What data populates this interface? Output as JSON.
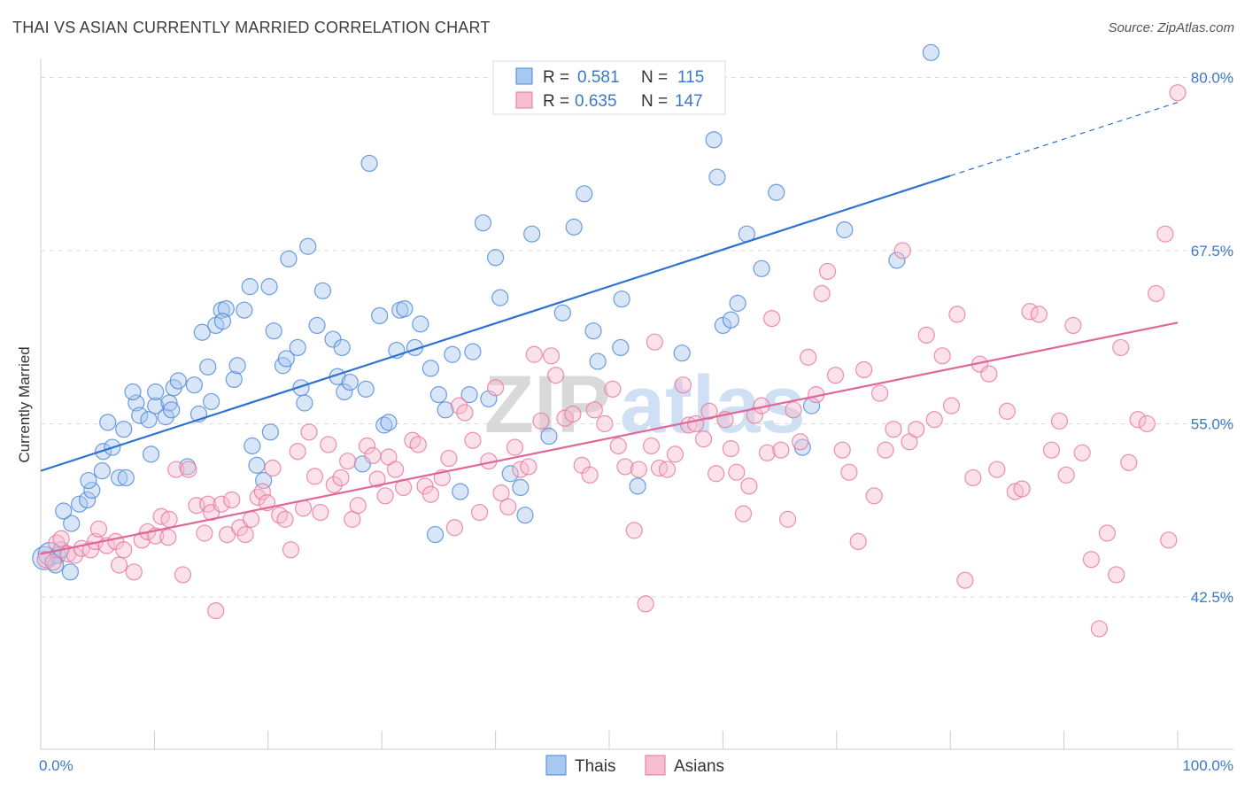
{
  "title": "THAI VS ASIAN CURRENTLY MARRIED CORRELATION CHART",
  "source": "Source: ZipAtlas.com",
  "watermark": {
    "zip": "ZIP",
    "atlas": "atlas"
  },
  "colors": {
    "thais": "#4a86d8",
    "thais_fill": "#a8c8f0",
    "asians": "#e8749b",
    "asians_fill": "#f6bcd0",
    "tick_text": "#3b78c9"
  },
  "legend_top": [
    {
      "r_label": "R = ",
      "r_value": "0.581",
      "n_label": "N = ",
      "n_value": "115"
    },
    {
      "r_label": "R = ",
      "r_value": "0.635",
      "n_label": "N = ",
      "n_value": "147"
    }
  ],
  "chart_data": {
    "type": "scatter",
    "title": "THAI VS ASIAN CURRENTLY MARRIED CORRELATION CHART",
    "xlabel": "",
    "ylabel": "Currently Married",
    "xlim": [
      0,
      100
    ],
    "ylim": [
      31.5,
      81.5
    ],
    "x_tick_labels": [
      "0.0%",
      "100.0%"
    ],
    "y_ticks": [
      42.5,
      55.0,
      67.5,
      80.0
    ],
    "y_tick_labels": [
      "42.5%",
      "55.0%",
      "67.5%",
      "80.0%"
    ],
    "grid": true,
    "legend_position": "bottom-center",
    "series": [
      {
        "name": "Thais",
        "r": 0.581,
        "n": 115,
        "trend": {
          "x1": 0,
          "y1": 51.6,
          "x2": 80,
          "y2": 72.9,
          "dashed_to_x": 100,
          "dashed_to_y": 78.2
        },
        "points": [
          [
            0.3,
            45.3
          ],
          [
            0.8,
            45.6
          ],
          [
            1.5,
            45.5
          ],
          [
            1.3,
            44.8
          ],
          [
            2.6,
            44.3
          ],
          [
            1.8,
            45.9
          ],
          [
            2.7,
            47.8
          ],
          [
            3.4,
            49.2
          ],
          [
            2.0,
            48.7
          ],
          [
            4.1,
            49.5
          ],
          [
            4.5,
            50.2
          ],
          [
            4.2,
            50.9
          ],
          [
            5.4,
            51.6
          ],
          [
            5.5,
            53.0
          ],
          [
            6.3,
            53.3
          ],
          [
            5.9,
            55.1
          ],
          [
            6.9,
            51.1
          ],
          [
            7.5,
            51.1
          ],
          [
            7.3,
            54.6
          ],
          [
            8.4,
            56.5
          ],
          [
            8.1,
            57.3
          ],
          [
            8.7,
            55.6
          ],
          [
            9.7,
            52.8
          ],
          [
            9.5,
            55.3
          ],
          [
            10.1,
            56.3
          ],
          [
            10.1,
            57.3
          ],
          [
            11.0,
            55.5
          ],
          [
            11.3,
            56.5
          ],
          [
            11.7,
            57.6
          ],
          [
            12.1,
            58.1
          ],
          [
            11.5,
            56.0
          ],
          [
            12.9,
            51.9
          ],
          [
            13.5,
            57.8
          ],
          [
            13.9,
            55.7
          ],
          [
            14.2,
            61.6
          ],
          [
            14.7,
            59.1
          ],
          [
            15.0,
            56.6
          ],
          [
            15.4,
            62.1
          ],
          [
            15.9,
            63.2
          ],
          [
            16.3,
            63.3
          ],
          [
            16.0,
            62.4
          ],
          [
            17.0,
            58.2
          ],
          [
            17.3,
            59.2
          ],
          [
            17.9,
            63.2
          ],
          [
            18.4,
            64.9
          ],
          [
            18.6,
            53.4
          ],
          [
            19.0,
            52.0
          ],
          [
            19.6,
            50.9
          ],
          [
            20.5,
            61.7
          ],
          [
            20.2,
            54.4
          ],
          [
            20.1,
            64.9
          ],
          [
            21.3,
            59.2
          ],
          [
            21.8,
            66.9
          ],
          [
            21.6,
            59.7
          ],
          [
            22.6,
            60.5
          ],
          [
            22.9,
            57.6
          ],
          [
            23.2,
            56.5
          ],
          [
            23.5,
            67.8
          ],
          [
            24.3,
            62.1
          ],
          [
            24.8,
            64.6
          ],
          [
            25.7,
            61.1
          ],
          [
            26.1,
            58.4
          ],
          [
            26.5,
            60.5
          ],
          [
            26.7,
            57.3
          ],
          [
            27.2,
            58.0
          ],
          [
            28.3,
            52.1
          ],
          [
            28.6,
            57.5
          ],
          [
            28.9,
            73.8
          ],
          [
            29.8,
            62.8
          ],
          [
            30.2,
            54.9
          ],
          [
            30.6,
            55.1
          ],
          [
            31.3,
            60.3
          ],
          [
            31.6,
            63.2
          ],
          [
            32.0,
            63.3
          ],
          [
            32.9,
            60.5
          ],
          [
            33.4,
            62.2
          ],
          [
            34.3,
            59.0
          ],
          [
            34.7,
            47.0
          ],
          [
            35.0,
            57.1
          ],
          [
            35.6,
            56.0
          ],
          [
            36.2,
            60.0
          ],
          [
            36.9,
            50.1
          ],
          [
            37.7,
            57.1
          ],
          [
            38.0,
            60.2
          ],
          [
            38.9,
            69.5
          ],
          [
            39.4,
            56.8
          ],
          [
            40.0,
            67.0
          ],
          [
            40.4,
            64.1
          ],
          [
            41.3,
            51.4
          ],
          [
            42.2,
            50.4
          ],
          [
            42.6,
            48.4
          ],
          [
            43.2,
            68.7
          ],
          [
            44.7,
            54.1
          ],
          [
            45.9,
            63.0
          ],
          [
            46.9,
            69.2
          ],
          [
            47.8,
            71.6
          ],
          [
            48.6,
            61.7
          ],
          [
            49.0,
            59.5
          ],
          [
            51.0,
            60.5
          ],
          [
            51.1,
            64.0
          ],
          [
            52.5,
            50.5
          ],
          [
            56.4,
            60.1
          ],
          [
            59.2,
            75.5
          ],
          [
            59.5,
            72.8
          ],
          [
            60.0,
            62.1
          ],
          [
            60.7,
            62.5
          ],
          [
            61.3,
            63.7
          ],
          [
            62.1,
            68.7
          ],
          [
            63.4,
            66.2
          ],
          [
            64.7,
            71.7
          ],
          [
            67.0,
            53.3
          ],
          [
            67.8,
            56.3
          ],
          [
            70.7,
            69.0
          ],
          [
            75.3,
            66.8
          ],
          [
            78.3,
            81.8
          ]
        ]
      },
      {
        "name": "Asians",
        "r": 0.635,
        "n": 147,
        "trend": {
          "x1": 0,
          "y1": 45.6,
          "x2": 100,
          "y2": 62.3
        },
        "points": [
          [
            0.4,
            45.2
          ],
          [
            1.1,
            45.0
          ],
          [
            1.4,
            46.4
          ],
          [
            1.8,
            46.7
          ],
          [
            2.4,
            45.6
          ],
          [
            3.0,
            45.5
          ],
          [
            3.6,
            46.0
          ],
          [
            4.4,
            45.9
          ],
          [
            4.8,
            46.5
          ],
          [
            5.1,
            47.4
          ],
          [
            5.8,
            46.2
          ],
          [
            6.6,
            46.5
          ],
          [
            6.9,
            44.8
          ],
          [
            7.3,
            45.9
          ],
          [
            8.2,
            44.3
          ],
          [
            8.9,
            46.6
          ],
          [
            9.4,
            47.2
          ],
          [
            10.1,
            46.9
          ],
          [
            10.6,
            48.3
          ],
          [
            11.2,
            46.8
          ],
          [
            11.3,
            48.1
          ],
          [
            11.9,
            51.7
          ],
          [
            12.5,
            44.1
          ],
          [
            13.0,
            51.7
          ],
          [
            13.7,
            49.1
          ],
          [
            14.4,
            47.1
          ],
          [
            14.7,
            49.2
          ],
          [
            15.0,
            48.6
          ],
          [
            15.4,
            41.5
          ],
          [
            15.9,
            49.2
          ],
          [
            16.4,
            47.0
          ],
          [
            16.8,
            49.5
          ],
          [
            17.5,
            47.5
          ],
          [
            18.0,
            47.0
          ],
          [
            18.5,
            48.1
          ],
          [
            19.1,
            49.7
          ],
          [
            19.5,
            50.1
          ],
          [
            19.9,
            49.3
          ],
          [
            20.4,
            51.8
          ],
          [
            21.0,
            48.4
          ],
          [
            21.5,
            48.1
          ],
          [
            22.0,
            45.9
          ],
          [
            22.6,
            53.0
          ],
          [
            23.1,
            48.9
          ],
          [
            23.6,
            54.4
          ],
          [
            24.1,
            51.2
          ],
          [
            24.6,
            48.6
          ],
          [
            25.3,
            53.5
          ],
          [
            25.8,
            50.6
          ],
          [
            26.4,
            51.1
          ],
          [
            27.0,
            52.3
          ],
          [
            27.4,
            48.1
          ],
          [
            27.9,
            49.1
          ],
          [
            28.7,
            53.4
          ],
          [
            29.2,
            52.7
          ],
          [
            29.6,
            51.0
          ],
          [
            30.3,
            49.8
          ],
          [
            30.6,
            52.6
          ],
          [
            31.2,
            51.7
          ],
          [
            31.9,
            50.4
          ],
          [
            32.7,
            53.8
          ],
          [
            33.2,
            53.5
          ],
          [
            33.8,
            50.5
          ],
          [
            34.3,
            49.9
          ],
          [
            35.3,
            51.1
          ],
          [
            35.9,
            52.5
          ],
          [
            36.4,
            47.5
          ],
          [
            36.8,
            56.3
          ],
          [
            37.3,
            55.8
          ],
          [
            38.0,
            53.8
          ],
          [
            38.6,
            48.6
          ],
          [
            39.4,
            52.3
          ],
          [
            40.0,
            57.6
          ],
          [
            40.5,
            50.0
          ],
          [
            41.1,
            49.0
          ],
          [
            41.7,
            53.3
          ],
          [
            42.2,
            51.7
          ],
          [
            42.9,
            51.9
          ],
          [
            43.4,
            60.0
          ],
          [
            44.0,
            55.2
          ],
          [
            44.9,
            59.9
          ],
          [
            45.3,
            58.5
          ],
          [
            46.1,
            55.4
          ],
          [
            46.8,
            55.7
          ],
          [
            47.6,
            52.0
          ],
          [
            48.3,
            51.3
          ],
          [
            48.7,
            56.0
          ],
          [
            49.6,
            55.0
          ],
          [
            50.3,
            57.5
          ],
          [
            50.8,
            53.4
          ],
          [
            51.4,
            51.9
          ],
          [
            52.2,
            47.3
          ],
          [
            52.6,
            51.7
          ],
          [
            53.2,
            42.0
          ],
          [
            53.7,
            53.4
          ],
          [
            54.0,
            60.9
          ],
          [
            54.4,
            51.8
          ],
          [
            55.1,
            51.7
          ],
          [
            55.8,
            52.8
          ],
          [
            56.5,
            57.8
          ],
          [
            57.0,
            54.9
          ],
          [
            57.6,
            55.0
          ],
          [
            58.3,
            53.9
          ],
          [
            58.8,
            55.9
          ],
          [
            59.4,
            51.4
          ],
          [
            60.2,
            55.3
          ],
          [
            60.7,
            53.2
          ],
          [
            61.2,
            51.5
          ],
          [
            61.8,
            48.5
          ],
          [
            62.3,
            50.5
          ],
          [
            62.8,
            55.6
          ],
          [
            63.4,
            56.3
          ],
          [
            63.9,
            52.9
          ],
          [
            64.3,
            62.6
          ],
          [
            65.1,
            53.1
          ],
          [
            65.7,
            48.1
          ],
          [
            66.2,
            56.0
          ],
          [
            66.8,
            53.7
          ],
          [
            67.5,
            59.8
          ],
          [
            68.2,
            57.1
          ],
          [
            68.7,
            64.4
          ],
          [
            69.2,
            66.0
          ],
          [
            69.9,
            58.5
          ],
          [
            70.5,
            53.1
          ],
          [
            71.1,
            51.5
          ],
          [
            71.9,
            46.5
          ],
          [
            72.4,
            58.9
          ],
          [
            73.3,
            49.8
          ],
          [
            73.8,
            57.2
          ],
          [
            74.3,
            53.1
          ],
          [
            75.0,
            54.6
          ],
          [
            75.8,
            67.5
          ],
          [
            76.4,
            53.7
          ],
          [
            77.0,
            54.6
          ],
          [
            77.9,
            61.4
          ],
          [
            78.6,
            55.3
          ],
          [
            79.3,
            59.9
          ],
          [
            80.1,
            56.3
          ],
          [
            80.6,
            62.9
          ],
          [
            81.3,
            43.7
          ],
          [
            82.0,
            51.1
          ],
          [
            82.6,
            59.3
          ],
          [
            83.4,
            58.6
          ],
          [
            84.1,
            51.7
          ],
          [
            85.0,
            55.9
          ],
          [
            85.7,
            50.1
          ],
          [
            86.3,
            50.3
          ],
          [
            87.0,
            63.1
          ],
          [
            87.8,
            62.9
          ],
          [
            88.9,
            53.1
          ],
          [
            89.6,
            55.2
          ],
          [
            90.2,
            51.3
          ],
          [
            90.8,
            62.1
          ],
          [
            91.6,
            52.9
          ],
          [
            92.4,
            45.2
          ],
          [
            93.1,
            40.2
          ],
          [
            93.8,
            47.1
          ],
          [
            94.6,
            44.1
          ],
          [
            95.0,
            60.5
          ],
          [
            95.7,
            52.2
          ],
          [
            96.5,
            55.3
          ],
          [
            97.3,
            55.0
          ],
          [
            98.1,
            64.4
          ],
          [
            98.9,
            68.7
          ],
          [
            99.2,
            46.6
          ],
          [
            100.0,
            78.9
          ]
        ]
      }
    ]
  },
  "legend_bottom": [
    {
      "label": "Thais"
    },
    {
      "label": "Asians"
    }
  ]
}
